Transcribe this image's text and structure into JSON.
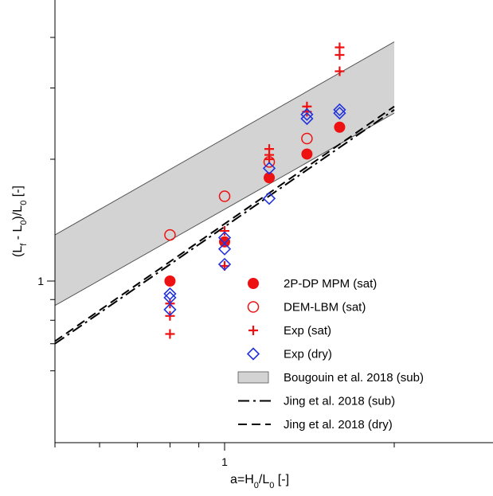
{
  "chart_data": {
    "type": "scatter",
    "x_scale": "log",
    "y_scale": "log",
    "xlim": [
      0.5,
      2.7
    ],
    "ylim": [
      0.6,
      4.6
    ],
    "grid": false,
    "legend_placement": "bottom-right",
    "xlabel_parts": [
      "a=H",
      "0",
      "/L",
      "0",
      " [-]"
    ],
    "ylabel_parts": [
      "(L",
      "f",
      " - L",
      "0",
      ")/L",
      "0",
      " [-]"
    ],
    "x_tick_labels": [
      {
        "value": 1,
        "label": "1"
      }
    ],
    "y_tick_labels": [
      {
        "value": 1,
        "label": "1"
      }
    ],
    "x_minor_ticks": [
      0.5,
      0.6,
      0.7,
      0.8,
      0.9,
      2
    ],
    "y_minor_ticks": [
      0.6,
      0.7,
      0.8,
      0.9,
      2,
      3,
      4
    ],
    "colors": {
      "red": "#ee1111",
      "blue": "#2233dd",
      "band_fill": "#d3d3d3",
      "line": "#000000"
    },
    "series": [
      {
        "name": "2P-DP MPM (sat)",
        "marker": "filled-circle",
        "color": "#ee1111",
        "points": [
          [
            0.8,
            1.0
          ],
          [
            1.0,
            1.25
          ],
          [
            1.2,
            1.8
          ],
          [
            1.4,
            2.06
          ],
          [
            1.6,
            2.4
          ]
        ]
      },
      {
        "name": "DEM-LBM (sat)",
        "marker": "open-circle",
        "color": "#ee1111",
        "points": [
          [
            0.8,
            1.3
          ],
          [
            1.0,
            1.62
          ],
          [
            1.2,
            1.97
          ],
          [
            1.4,
            2.25
          ]
        ]
      },
      {
        "name": "Exp (sat)",
        "marker": "plus",
        "color": "#ee1111",
        "points": [
          [
            0.8,
            0.88
          ],
          [
            0.8,
            0.82
          ],
          [
            0.8,
            0.74
          ],
          [
            1.0,
            1.33
          ],
          [
            1.0,
            1.25
          ],
          [
            1.0,
            1.09
          ],
          [
            1.2,
            2.12
          ],
          [
            1.2,
            2.05
          ],
          [
            1.2,
            2.0
          ],
          [
            1.4,
            2.7
          ],
          [
            1.4,
            2.62
          ],
          [
            1.6,
            3.78
          ],
          [
            1.6,
            3.62
          ],
          [
            1.6,
            3.3
          ]
        ]
      },
      {
        "name": "Exp (dry)",
        "marker": "open-diamond",
        "color": "#2233dd",
        "points": [
          [
            0.8,
            0.93
          ],
          [
            0.8,
            0.91
          ],
          [
            0.8,
            0.85
          ],
          [
            1.0,
            1.28
          ],
          [
            1.0,
            1.2
          ],
          [
            1.0,
            1.1
          ],
          [
            1.2,
            1.9
          ],
          [
            1.2,
            1.6
          ],
          [
            1.4,
            2.58
          ],
          [
            1.4,
            2.52
          ],
          [
            1.6,
            2.65
          ],
          [
            1.6,
            2.6
          ]
        ]
      }
    ],
    "band": {
      "name": "Bougouin et al. 2018 (sub)",
      "upper": [
        [
          0.5,
          1.3
        ],
        [
          2.0,
          3.9
        ]
      ],
      "lower": [
        [
          0.5,
          0.87
        ],
        [
          2.0,
          2.6
        ]
      ]
    },
    "lines": [
      {
        "name": "Jing et al. 2018 (sub)",
        "style": "dash-dot",
        "points": [
          [
            0.5,
            0.7
          ],
          [
            2.0,
            2.65
          ]
        ]
      },
      {
        "name": "Jing et al. 2018 (dry)",
        "style": "dashed",
        "points": [
          [
            0.5,
            0.71
          ],
          [
            2.0,
            2.7
          ]
        ]
      }
    ]
  }
}
